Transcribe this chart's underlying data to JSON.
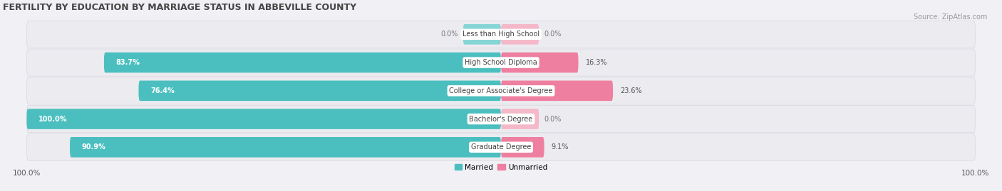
{
  "title": "FERTILITY BY EDUCATION BY MARRIAGE STATUS IN ABBEVILLE COUNTY",
  "source": "Source: ZipAtlas.com",
  "categories": [
    "Less than High School",
    "High School Diploma",
    "College or Associate's Degree",
    "Bachelor's Degree",
    "Graduate Degree"
  ],
  "married": [
    0.0,
    83.7,
    76.4,
    100.0,
    90.9
  ],
  "unmarried": [
    0.0,
    16.3,
    23.6,
    0.0,
    9.1
  ],
  "married_color": "#4bbfbf",
  "unmarried_color": "#ef7fa0",
  "married_stub_color": "#85d5d5",
  "unmarried_stub_color": "#f5b8c8",
  "row_bg_color": "#ebebf0",
  "row_bg_edge": "#d8d8e0",
  "title_fontsize": 9,
  "source_fontsize": 7,
  "bar_height": 0.72,
  "xlim": 100,
  "legend_married": "Married",
  "legend_unmarried": "Unmarried",
  "value_label_size": 7,
  "cat_label_size": 7,
  "stub_size": 8.0
}
